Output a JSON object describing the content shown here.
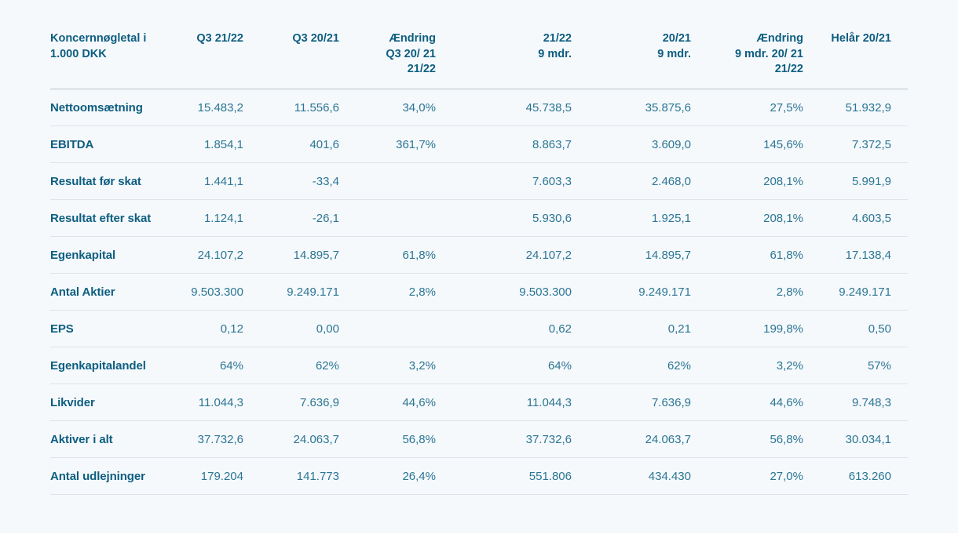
{
  "page": {
    "background_color": "#f6f9fc",
    "heading_text_color": "#0d5e80",
    "value_text_color": "#2b7694"
  },
  "table": {
    "columns": [
      {
        "label": "Koncernnøgletal i\n1.000 DKK",
        "align": "left"
      },
      {
        "label": "Q3 21/22",
        "align": "right"
      },
      {
        "label": "Q3 20/21",
        "align": "right"
      },
      {
        "label": "Ændring\nQ3 20/ 21\n21/22",
        "align": "right"
      },
      {
        "label": "21/22\n9 mdr.",
        "align": "right"
      },
      {
        "label": "20/21\n9 mdr.",
        "align": "right"
      },
      {
        "label": "Ændring\n9 mdr. 20/ 21\n21/22",
        "align": "right"
      },
      {
        "label": "Helår 20/21",
        "align": "right"
      }
    ],
    "rows": [
      {
        "label": "Nettoomsætning",
        "values": [
          "15.483,2",
          "11.556,6",
          "34,0%",
          "45.738,5",
          "35.875,6",
          "27,5%",
          "51.932,9"
        ]
      },
      {
        "label": "EBITDA",
        "values": [
          "1.854,1",
          "401,6",
          "361,7%",
          "8.863,7",
          "3.609,0",
          "145,6%",
          "7.372,5"
        ]
      },
      {
        "label": "Resultat før skat",
        "values": [
          "1.441,1",
          "-33,4",
          "",
          "7.603,3",
          "2.468,0",
          "208,1%",
          "5.991,9"
        ]
      },
      {
        "label": "Resultat efter skat",
        "values": [
          "1.124,1",
          "-26,1",
          "",
          "5.930,6",
          "1.925,1",
          "208,1%",
          "4.603,5"
        ]
      },
      {
        "label": "Egenkapital",
        "values": [
          "24.107,2",
          "14.895,7",
          "61,8%",
          "24.107,2",
          "14.895,7",
          "61,8%",
          "17.138,4"
        ]
      },
      {
        "label": "Antal Aktier",
        "values": [
          "9.503.300",
          "9.249.171",
          "2,8%",
          "9.503.300",
          "9.249.171",
          "2,8%",
          "9.249.171"
        ]
      },
      {
        "label": "EPS",
        "values": [
          "0,12",
          "0,00",
          "",
          "0,62",
          "0,21",
          "199,8%",
          "0,50"
        ]
      },
      {
        "label": "Egenkapitalandel",
        "values": [
          "64%",
          "62%",
          "3,2%",
          "64%",
          "62%",
          "3,2%",
          "57%"
        ]
      },
      {
        "label": "Likvider",
        "values": [
          "11.044,3",
          "7.636,9",
          "44,6%",
          "11.044,3",
          "7.636,9",
          "44,6%",
          "9.748,3"
        ]
      },
      {
        "label": "Aktiver i alt",
        "values": [
          "37.732,6",
          "24.063,7",
          "56,8%",
          "37.732,6",
          "24.063,7",
          "56,8%",
          "30.034,1"
        ]
      },
      {
        "label": "Antal udlejninger",
        "values": [
          "179.204",
          "141.773",
          "26,4%",
          "551.806",
          "434.430",
          "27,0%",
          "613.260"
        ]
      }
    ]
  },
  "chart_data": {
    "type": "table",
    "title": "Koncernnøgletal i 1.000 DKK",
    "columns": [
      "Koncernnøgletal i 1.000 DKK",
      "Q3 21/22",
      "Q3 20/21",
      "Ændring Q3 20/21 21/22",
      "21/22 9 mdr.",
      "20/21 9 mdr.",
      "Ændring 9 mdr. 20/21 21/22",
      "Helår 20/21"
    ],
    "rows": [
      [
        "Nettoomsætning",
        "15.483,2",
        "11.556,6",
        "34,0%",
        "45.738,5",
        "35.875,6",
        "27,5%",
        "51.932,9"
      ],
      [
        "EBITDA",
        "1.854,1",
        "401,6",
        "361,7%",
        "8.863,7",
        "3.609,0",
        "145,6%",
        "7.372,5"
      ],
      [
        "Resultat før skat",
        "1.441,1",
        "-33,4",
        "",
        "7.603,3",
        "2.468,0",
        "208,1%",
        "5.991,9"
      ],
      [
        "Resultat efter skat",
        "1.124,1",
        "-26,1",
        "",
        "5.930,6",
        "1.925,1",
        "208,1%",
        "4.603,5"
      ],
      [
        "Egenkapital",
        "24.107,2",
        "14.895,7",
        "61,8%",
        "24.107,2",
        "14.895,7",
        "61,8%",
        "17.138,4"
      ],
      [
        "Antal Aktier",
        "9.503.300",
        "9.249.171",
        "2,8%",
        "9.503.300",
        "9.249.171",
        "2,8%",
        "9.249.171"
      ],
      [
        "EPS",
        "0,12",
        "0,00",
        "",
        "0,62",
        "0,21",
        "199,8%",
        "0,50"
      ],
      [
        "Egenkapitalandel",
        "64%",
        "62%",
        "3,2%",
        "64%",
        "62%",
        "3,2%",
        "57%"
      ],
      [
        "Likvider",
        "11.044,3",
        "7.636,9",
        "44,6%",
        "11.044,3",
        "7.636,9",
        "44,6%",
        "9.748,3"
      ],
      [
        "Aktiver i alt",
        "37.732,6",
        "24.063,7",
        "56,8%",
        "37.732,6",
        "24.063,7",
        "56,8%",
        "30.034,1"
      ],
      [
        "Antal udlejninger",
        "179.204",
        "141.773",
        "26,4%",
        "551.806",
        "434.430",
        "27,0%",
        "613.260"
      ]
    ]
  }
}
